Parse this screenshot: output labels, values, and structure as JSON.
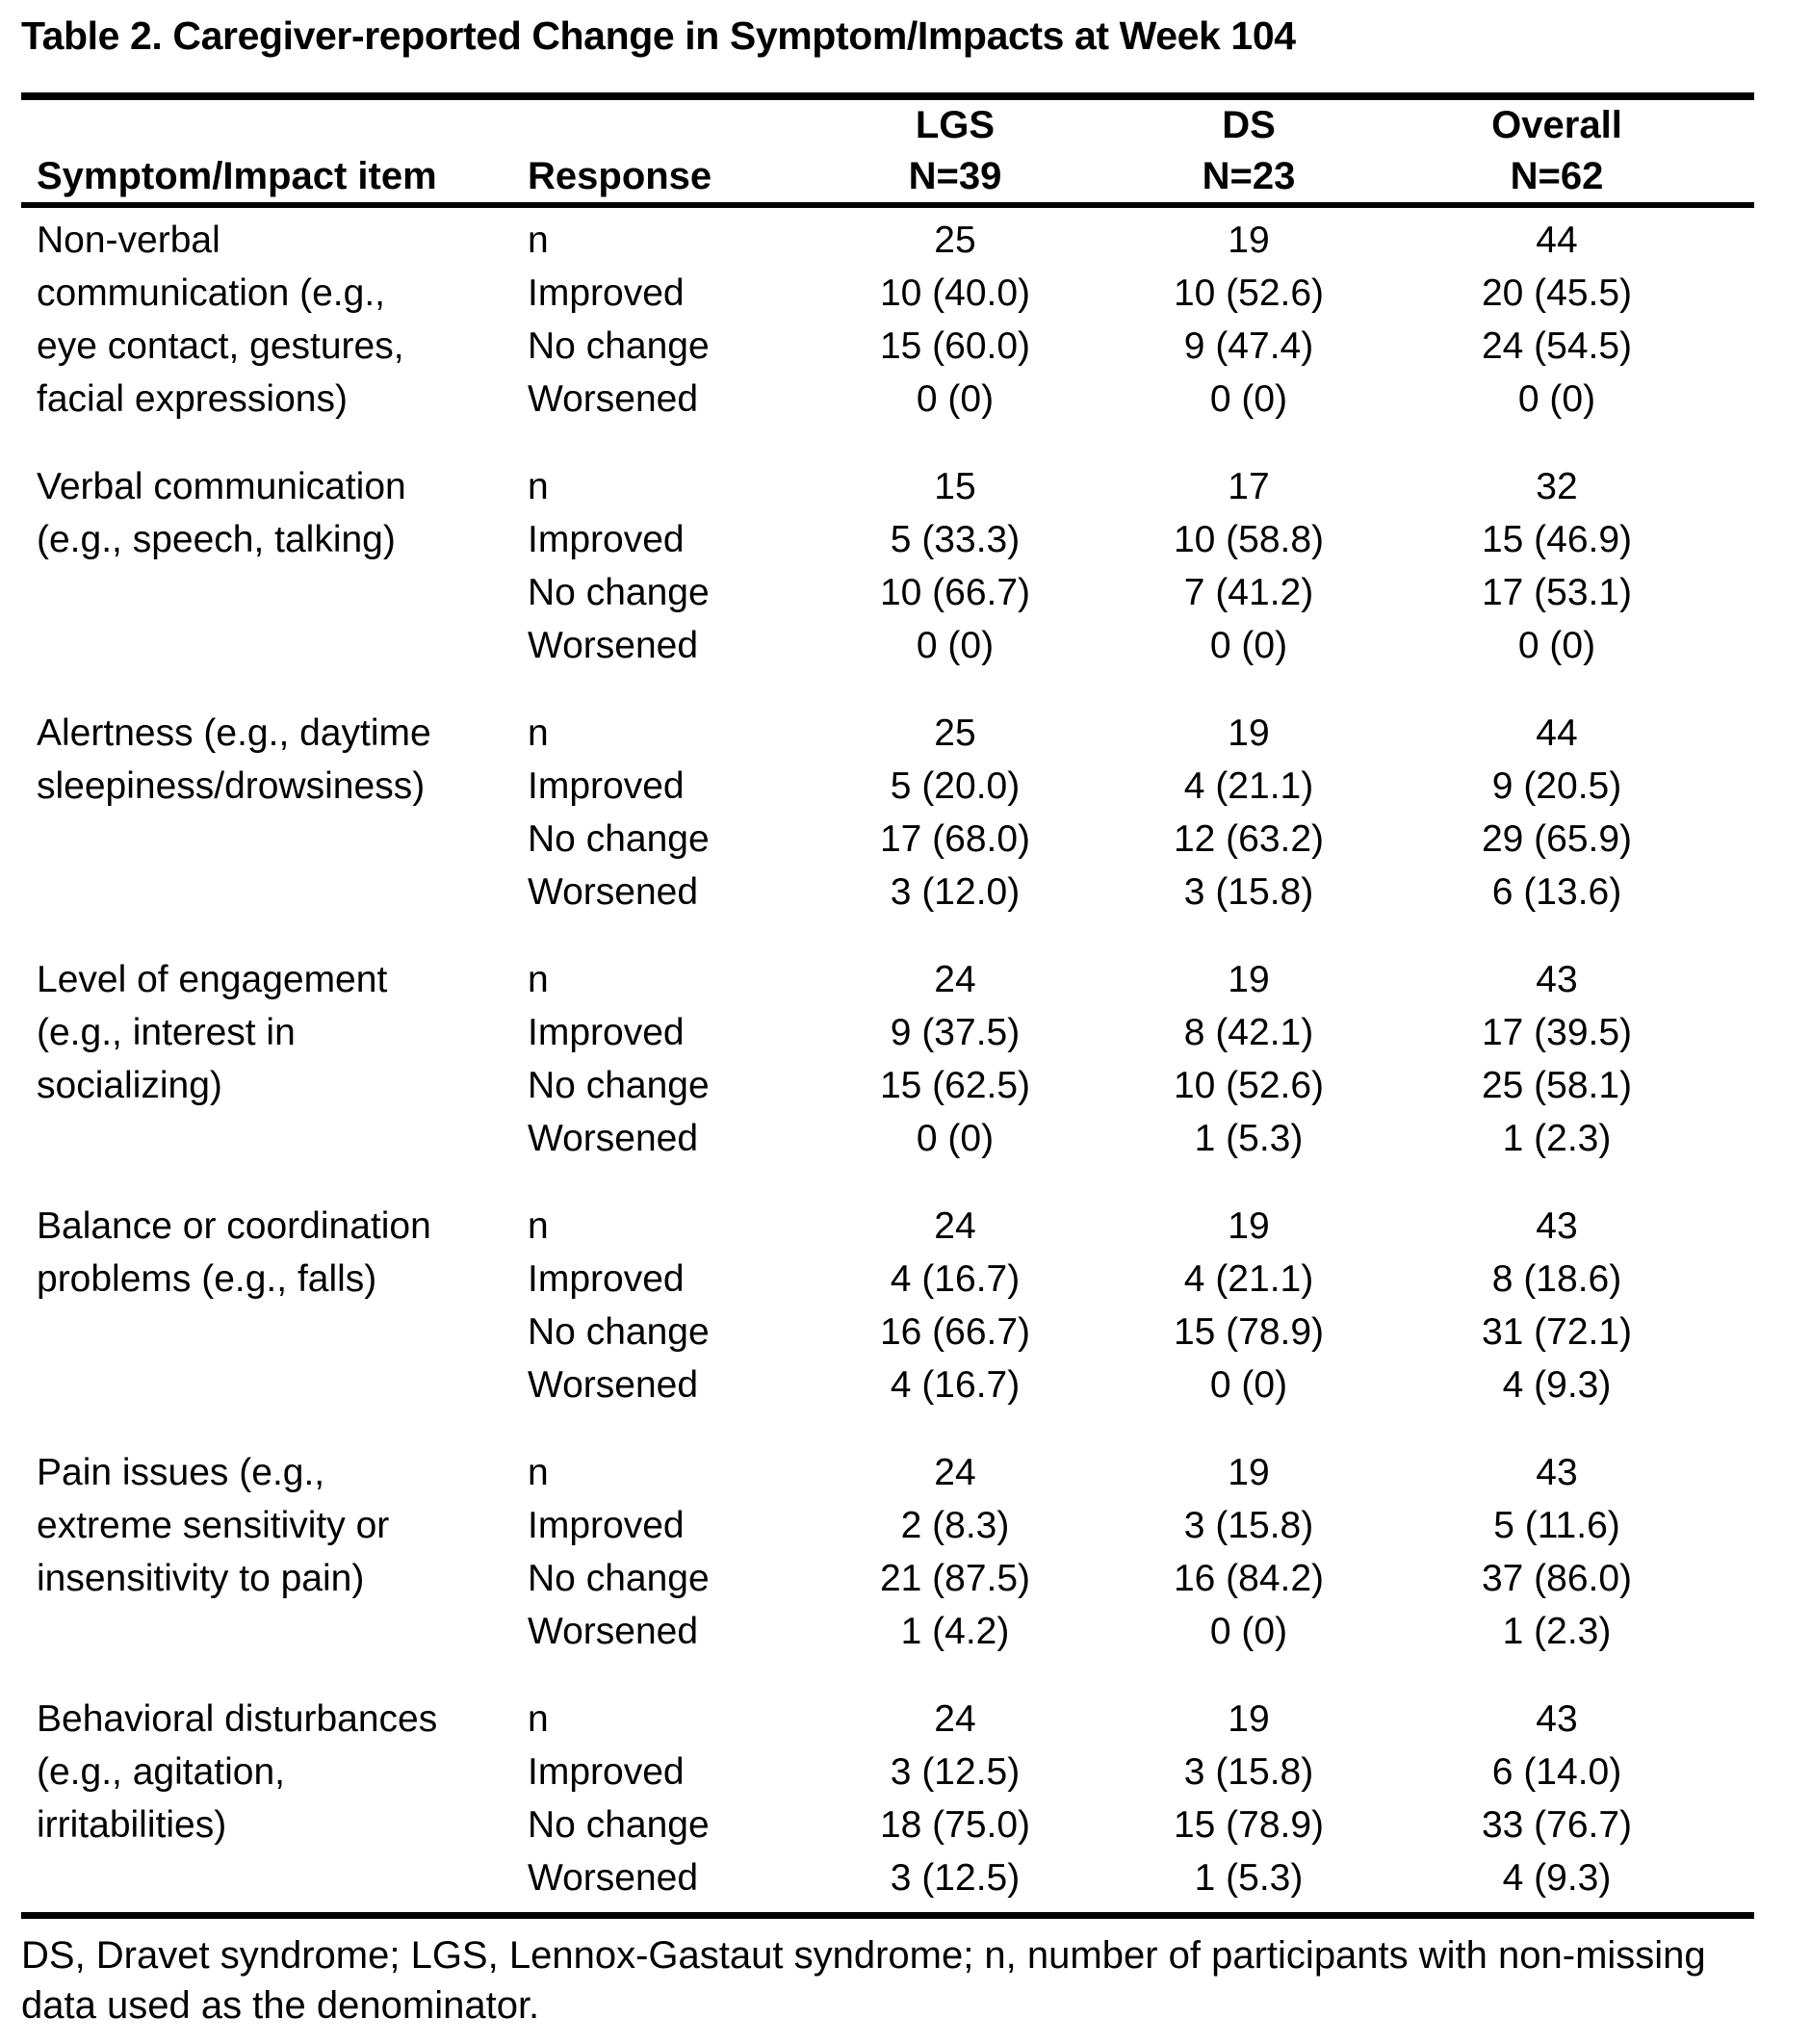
{
  "title": "Table 2. Caregiver-reported Change in Symptom/Impacts at Week 104",
  "header": {
    "item_col": "Symptom/Impact item",
    "response_col": "Response",
    "lgs": "LGS",
    "lgs_n": "N=39",
    "ds": "DS",
    "ds_n": "N=23",
    "overall": "Overall",
    "overall_n": "N=62"
  },
  "groups": [
    {
      "item": "Non-verbal communication (e.g., eye contact, gestures, facial expressions)",
      "lines": [
        "Non-verbal",
        "communication (e.g.,",
        "eye contact, gestures,",
        "facial expressions)"
      ],
      "rows": [
        {
          "response": "n",
          "lgs": "25",
          "ds": "19",
          "overall": "44"
        },
        {
          "response": "Improved",
          "lgs": "10 (40.0)",
          "ds": "10 (52.6)",
          "overall": "20 (45.5)"
        },
        {
          "response": "No change",
          "lgs": "15 (60.0)",
          "ds": "9 (47.4)",
          "overall": "24 (54.5)"
        },
        {
          "response": "Worsened",
          "lgs": "0 (0)",
          "ds": "0 (0)",
          "overall": "0 (0)"
        }
      ]
    },
    {
      "item": "Verbal communication (e.g., speech, talking)",
      "lines": [
        "Verbal communication",
        "(e.g., speech, talking)"
      ],
      "rows": [
        {
          "response": "n",
          "lgs": "15",
          "ds": "17",
          "overall": "32"
        },
        {
          "response": "Improved",
          "lgs": "5 (33.3)",
          "ds": "10 (58.8)",
          "overall": "15 (46.9)"
        },
        {
          "response": "No change",
          "lgs": "10 (66.7)",
          "ds": "7 (41.2)",
          "overall": "17 (53.1)"
        },
        {
          "response": "Worsened",
          "lgs": "0 (0)",
          "ds": "0 (0)",
          "overall": "0 (0)"
        }
      ]
    },
    {
      "item": "Alertness (e.g., daytime sleepiness/drowsiness)",
      "lines": [
        "Alertness (e.g., daytime",
        "sleepiness/drowsiness)"
      ],
      "rows": [
        {
          "response": "n",
          "lgs": "25",
          "ds": "19",
          "overall": "44"
        },
        {
          "response": "Improved",
          "lgs": "5 (20.0)",
          "ds": "4 (21.1)",
          "overall": "9 (20.5)"
        },
        {
          "response": "No change",
          "lgs": "17 (68.0)",
          "ds": "12 (63.2)",
          "overall": "29 (65.9)"
        },
        {
          "response": "Worsened",
          "lgs": "3 (12.0)",
          "ds": "3 (15.8)",
          "overall": "6 (13.6)"
        }
      ]
    },
    {
      "item": "Level of engagement (e.g., interest in socializing)",
      "lines": [
        "Level of engagement",
        "(e.g., interest in",
        "socializing)"
      ],
      "rows": [
        {
          "response": "n",
          "lgs": "24",
          "ds": "19",
          "overall": "43"
        },
        {
          "response": "Improved",
          "lgs": "9 (37.5)",
          "ds": "8 (42.1)",
          "overall": "17 (39.5)"
        },
        {
          "response": "No change",
          "lgs": "15 (62.5)",
          "ds": "10 (52.6)",
          "overall": "25 (58.1)"
        },
        {
          "response": "Worsened",
          "lgs": "0 (0)",
          "ds": "1 (5.3)",
          "overall": "1 (2.3)"
        }
      ]
    },
    {
      "item": "Balance or coordination problems (e.g., falls)",
      "lines": [
        "Balance or coordination",
        "problems (e.g., falls)"
      ],
      "rows": [
        {
          "response": "n",
          "lgs": "24",
          "ds": "19",
          "overall": "43"
        },
        {
          "response": "Improved",
          "lgs": "4 (16.7)",
          "ds": "4 (21.1)",
          "overall": "8 (18.6)"
        },
        {
          "response": "No change",
          "lgs": "16 (66.7)",
          "ds": "15 (78.9)",
          "overall": "31 (72.1)"
        },
        {
          "response": "Worsened",
          "lgs": "4 (16.7)",
          "ds": "0 (0)",
          "overall": "4 (9.3)"
        }
      ]
    },
    {
      "item": "Pain issues (e.g., extreme sensitivity or insensitivity to pain)",
      "lines": [
        "Pain issues (e.g.,",
        "extreme sensitivity or",
        "insensitivity to pain)"
      ],
      "rows": [
        {
          "response": "n",
          "lgs": "24",
          "ds": "19",
          "overall": "43"
        },
        {
          "response": "Improved",
          "lgs": "2 (8.3)",
          "ds": "3 (15.8)",
          "overall": "5 (11.6)"
        },
        {
          "response": "No change",
          "lgs": "21 (87.5)",
          "ds": "16 (84.2)",
          "overall": "37 (86.0)"
        },
        {
          "response": "Worsened",
          "lgs": "1 (4.2)",
          "ds": "0 (0)",
          "overall": "1 (2.3)"
        }
      ]
    },
    {
      "item": "Behavioral disturbances (e.g., agitation, irritabilities)",
      "lines": [
        "Behavioral disturbances",
        "(e.g., agitation,",
        "irritabilities)"
      ],
      "rows": [
        {
          "response": "n",
          "lgs": "24",
          "ds": "19",
          "overall": "43"
        },
        {
          "response": "Improved",
          "lgs": "3 (12.5)",
          "ds": "3 (15.8)",
          "overall": "6 (14.0)"
        },
        {
          "response": "No change",
          "lgs": "18 (75.0)",
          "ds": "15 (78.9)",
          "overall": "33 (76.7)"
        },
        {
          "response": "Worsened",
          "lgs": "3 (12.5)",
          "ds": "1 (5.3)",
          "overall": "4 (9.3)"
        }
      ]
    }
  ],
  "footnote": {
    "text": "DS, Dravet syndrome; LGS, Lennox-Gastaut syndrome; n, number of participants with non-missing data used as the denominator.",
    "lines": [
      "DS, Dravet syndrome; LGS, Lennox-Gastaut syndrome; n, number of participants with non-missing",
      "data used as the denominator."
    ]
  }
}
